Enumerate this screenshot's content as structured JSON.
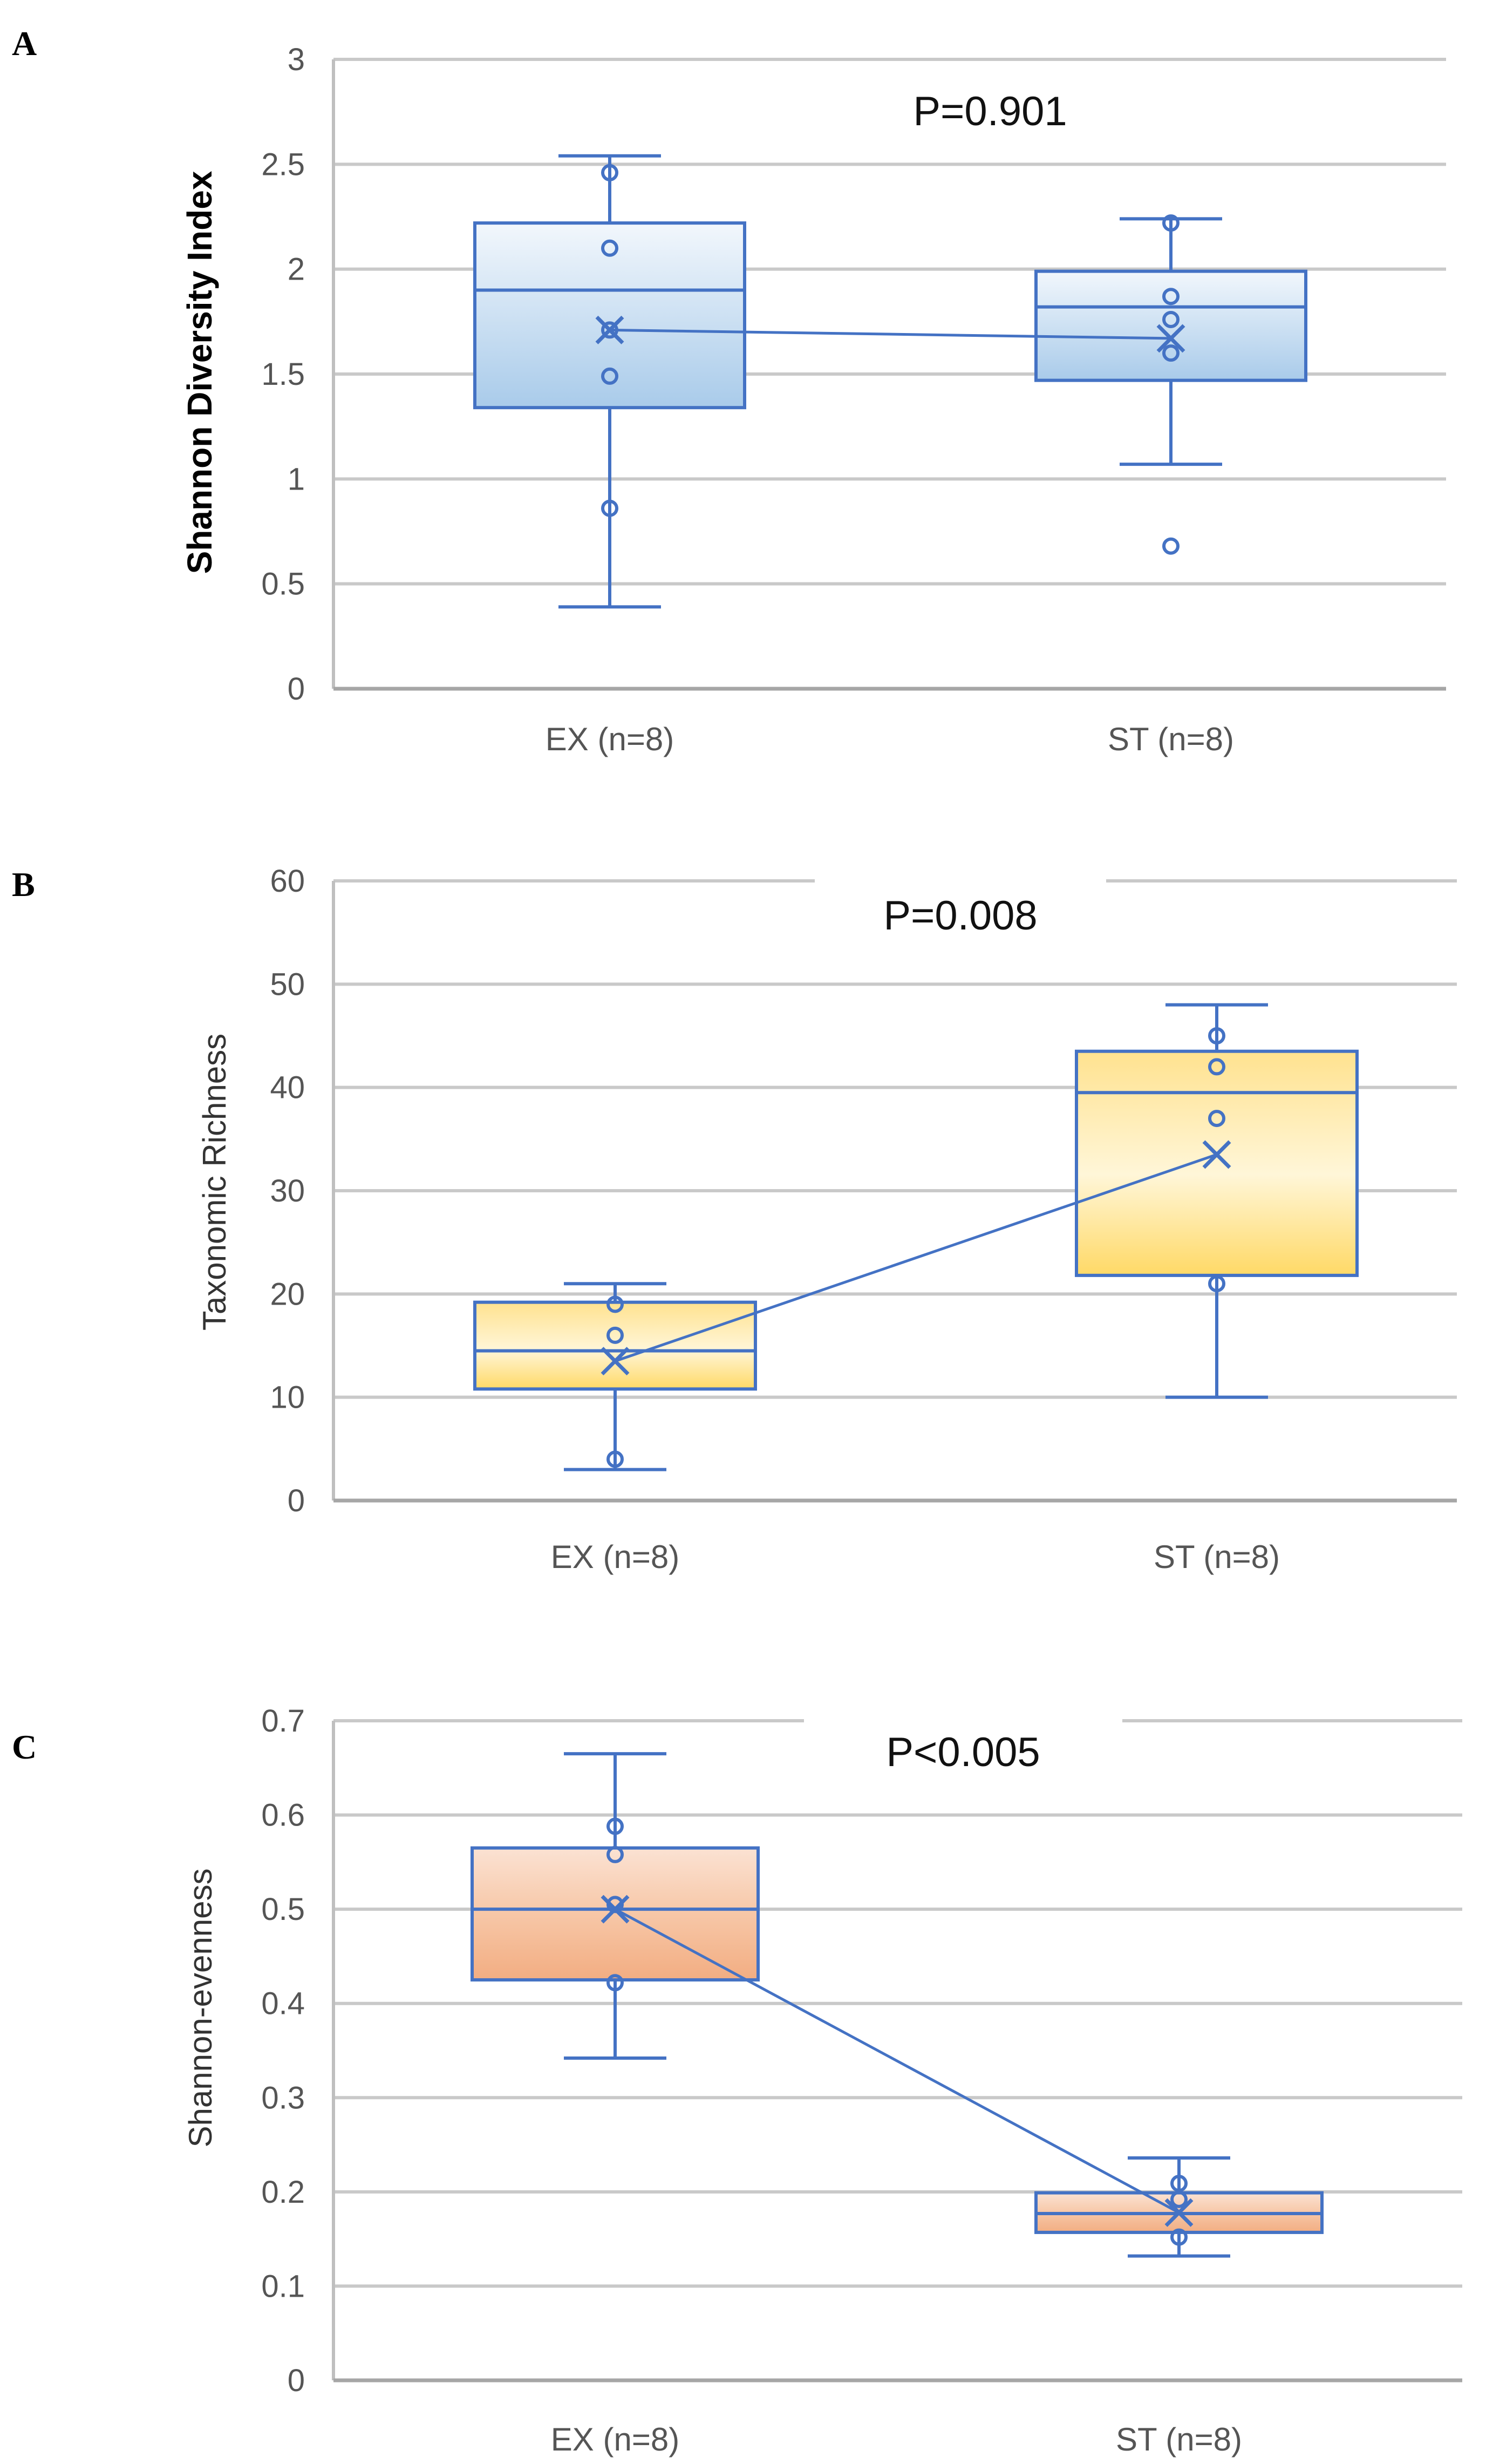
{
  "chart_data": [
    {
      "type": "box",
      "panel": "A",
      "ylabel": "Shannon Diversity Index",
      "ylim": [
        0,
        3
      ],
      "yticks": [
        "0",
        "0.5",
        "1",
        "1.5",
        "2",
        "2.5",
        "3"
      ],
      "ytick_values": [
        0,
        0.5,
        1,
        1.5,
        2,
        2.5,
        3
      ],
      "annotation": "P=0.901",
      "grid": true,
      "fill_color": "#9dc3e6",
      "categories": [
        "EX (n=8)",
        "ST (n=8)"
      ],
      "boxes": [
        {
          "name": "EX",
          "whisker_low": 0.39,
          "q1": 1.34,
          "median": 1.9,
          "q3": 2.22,
          "whisker_high": 2.54,
          "mean": 1.71,
          "points": [
            0.86,
            1.49,
            1.71,
            2.1,
            2.46
          ]
        },
        {
          "name": "ST",
          "whisker_low": 1.07,
          "q1": 1.47,
          "median": 1.82,
          "q3": 1.99,
          "whisker_high": 2.24,
          "mean": 1.67,
          "points": [
            0.68,
            1.6,
            1.76,
            1.87,
            2.22
          ]
        }
      ]
    },
    {
      "type": "box",
      "panel": "B",
      "ylabel": "Taxonomic Richness",
      "ylim": [
        0,
        60
      ],
      "yticks": [
        "0",
        "10",
        "20",
        "30",
        "40",
        "50",
        "60"
      ],
      "ytick_values": [
        0,
        10,
        20,
        30,
        40,
        50,
        60
      ],
      "annotation": "P=0.008",
      "grid": true,
      "fill_color": "#ffd966",
      "categories": [
        "EX (n=8)",
        "ST (n=8)"
      ],
      "boxes": [
        {
          "name": "EX",
          "whisker_low": 3,
          "q1": 10.8,
          "median": 14.5,
          "q3": 19.2,
          "whisker_high": 21,
          "mean": 13.5,
          "points": [
            4,
            16,
            19
          ]
        },
        {
          "name": "ST",
          "whisker_low": 10,
          "q1": 21.8,
          "median": 39.5,
          "q3": 43.5,
          "whisker_high": 48,
          "mean": 33.5,
          "points": [
            21,
            37,
            42,
            45
          ]
        }
      ]
    },
    {
      "type": "box",
      "panel": "C",
      "ylabel": "Shannon-evenness",
      "ylim": [
        0,
        0.7
      ],
      "yticks": [
        "0",
        "0.1",
        "0.2",
        "0.3",
        "0.4",
        "0.5",
        "0.6",
        "0.7"
      ],
      "ytick_values": [
        0,
        0.1,
        0.2,
        0.3,
        0.4,
        0.5,
        0.6,
        0.7
      ],
      "annotation": "P<0.005",
      "grid": true,
      "fill_color": "#f4b183",
      "categories": [
        "EX (n=8)",
        "ST (n=8)"
      ],
      "boxes": [
        {
          "name": "EX",
          "whisker_low": 0.342,
          "q1": 0.425,
          "median": 0.5,
          "q3": 0.565,
          "whisker_high": 0.665,
          "mean": 0.5,
          "points": [
            0.422,
            0.505,
            0.558,
            0.588
          ]
        },
        {
          "name": "ST",
          "whisker_low": 0.132,
          "q1": 0.157,
          "median": 0.177,
          "q3": 0.199,
          "whisker_high": 0.236,
          "mean": 0.178,
          "points": [
            0.152,
            0.192,
            0.209
          ]
        }
      ]
    }
  ]
}
